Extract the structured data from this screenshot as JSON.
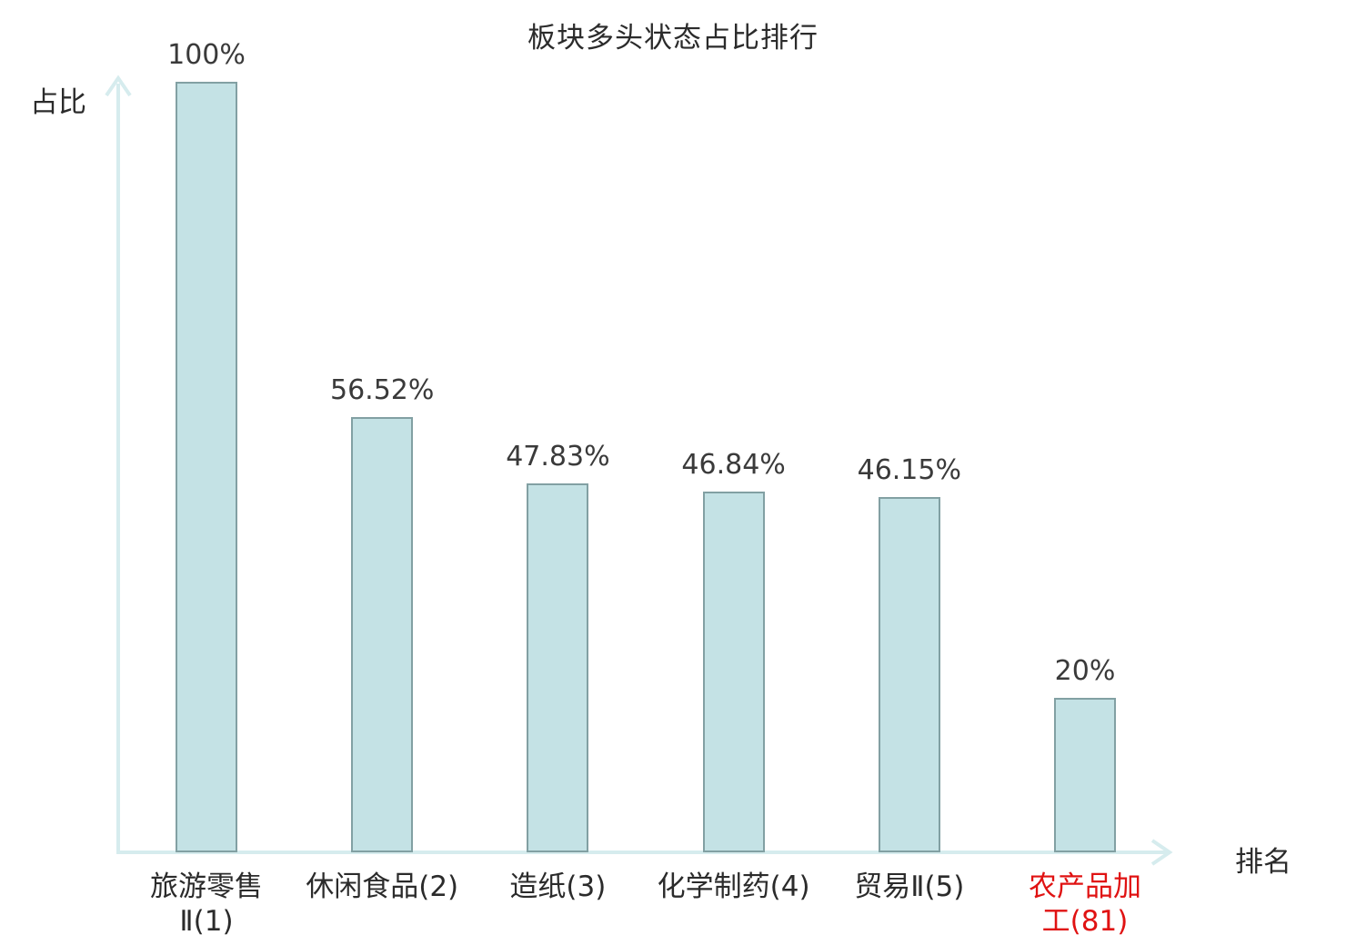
{
  "chart_data": {
    "type": "bar",
    "title": "板块多头状态占比排行",
    "ylabel": "占比",
    "xlabel": "排名",
    "ylim": [
      0,
      100
    ],
    "grid": false,
    "legend": false,
    "categories": [
      "旅游零售Ⅱ(1)",
      "休闲食品(2)",
      "造纸(3)",
      "化学制药(4)",
      "贸易Ⅱ(5)",
      "农产品加工(81)"
    ],
    "values": [
      100,
      56.52,
      47.83,
      46.84,
      46.15,
      20
    ],
    "points": [
      {
        "category": "旅游零售\nⅡ(1)",
        "value": 100,
        "value_label": "100%"
      },
      {
        "category": "休闲食品(2)",
        "value": 56.52,
        "value_label": "56.52%"
      },
      {
        "category": "造纸(3)",
        "value": 47.83,
        "value_label": "47.83%"
      },
      {
        "category": "化学制药(4)",
        "value": 46.84,
        "value_label": "46.84%"
      },
      {
        "category": "贸易Ⅱ(5)",
        "value": 46.15,
        "value_label": "46.15%"
      },
      {
        "category": "农产品加\n工(81)",
        "value": 20,
        "value_label": "20%",
        "color": "#e01212"
      }
    ],
    "colors": {
      "bar_fill": "#c4e2e5",
      "bar_border": "#82a0a3",
      "axis": "#d6ecee",
      "text": "#3a3a3a",
      "highlight": "#e01212"
    }
  }
}
